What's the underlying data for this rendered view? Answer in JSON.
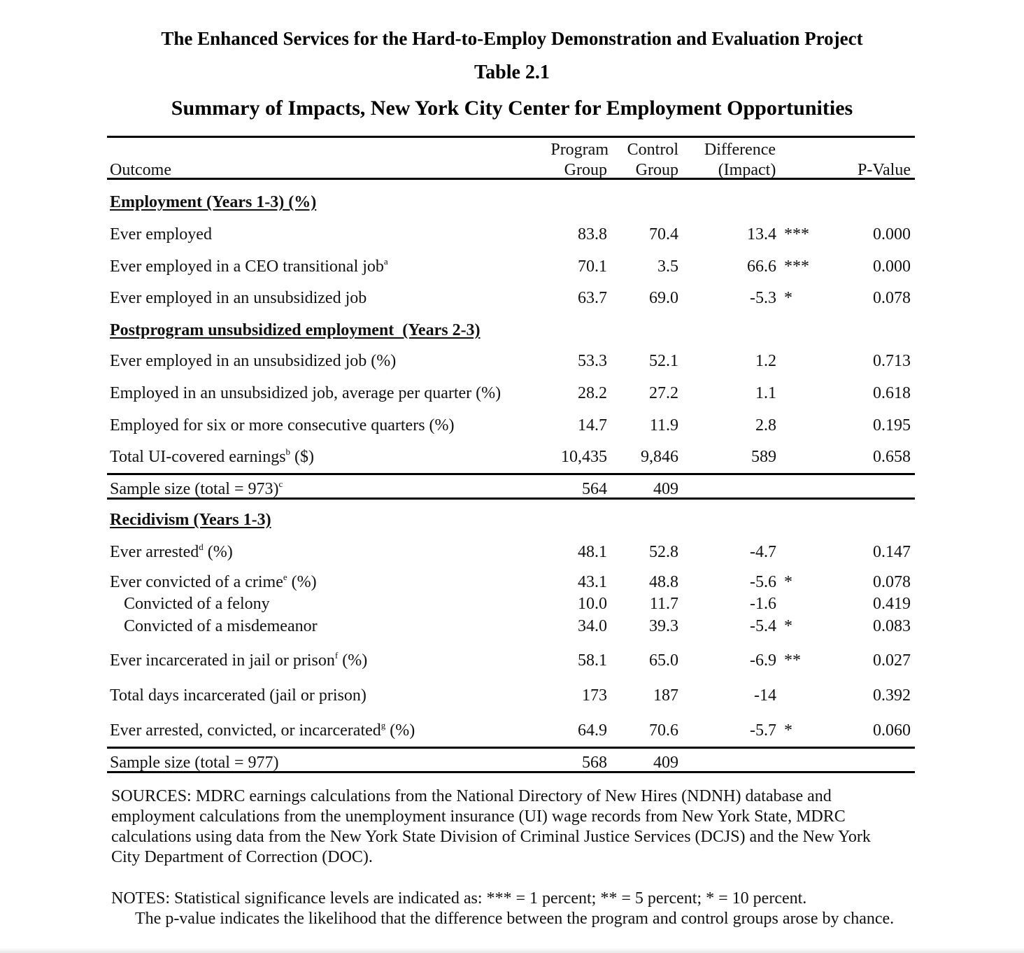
{
  "header": {
    "project": "The Enhanced Services for the Hard-to-Employ Demonstration and Evaluation Project",
    "table_number": "Table 2.1",
    "table_title": "Summary of Impacts, New York City Center for Employment Opportunities"
  },
  "columns": {
    "outcome": "Outcome",
    "program": [
      "Program",
      "Group"
    ],
    "control": [
      "Control",
      "Group"
    ],
    "difference": [
      "Difference",
      "(Impact)"
    ],
    "pvalue": "P-Value"
  },
  "sections": {
    "employment": "Employment (Years 1-3) (%)",
    "postprogram": "Postprogram unsubsidized employment  (Years 2-3)",
    "recidivism": "Recidivism (Years 1-3)"
  },
  "rows": [
    {
      "label": "Ever employed",
      "sup": "",
      "suffix": "",
      "program": "83.8",
      "control": "70.4",
      "diff": "13.4",
      "stars": "***",
      "p": "0.000"
    },
    {
      "label": "Ever employed in a CEO transitional job",
      "sup": "a",
      "suffix": "",
      "program": "70.1",
      "control": "3.5",
      "diff": "66.6",
      "stars": "***",
      "p": "0.000"
    },
    {
      "label": "Ever employed in an unsubsidized job",
      "sup": "",
      "suffix": "",
      "program": "63.7",
      "control": "69.0",
      "diff": "-5.3",
      "stars": "*",
      "p": "0.078"
    },
    {
      "label": "Ever employed in an unsubsidized job (%)",
      "sup": "",
      "suffix": "",
      "program": "53.3",
      "control": "52.1",
      "diff": "1.2",
      "stars": "",
      "p": "0.713"
    },
    {
      "label": "Employed in an unsubsidized job, average per quarter (%)",
      "sup": "",
      "suffix": "",
      "program": "28.2",
      "control": "27.2",
      "diff": "1.1",
      "stars": "",
      "p": "0.618"
    },
    {
      "label": "Employed for six or more consecutive quarters (%)",
      "sup": "",
      "suffix": "",
      "program": "14.7",
      "control": "11.9",
      "diff": "2.8",
      "stars": "",
      "p": "0.195"
    },
    {
      "label": "Total UI-covered earnings",
      "sup": "b",
      "suffix": " ($)",
      "program": "10,435",
      "control": "9,846",
      "diff": "589",
      "stars": "",
      "p": "0.658"
    },
    {
      "label": "Sample size (total = 973)",
      "sup": "c",
      "suffix": "",
      "program": "564",
      "control": "409",
      "diff": "",
      "stars": "",
      "p": ""
    },
    {
      "label": "Ever arrested",
      "sup": "d",
      "suffix": " (%)",
      "program": "48.1",
      "control": "52.8",
      "diff": "-4.7",
      "stars": "",
      "p": "0.147"
    },
    {
      "label": "Ever convicted of a crime",
      "sup": "e",
      "suffix": " (%)",
      "program": "43.1",
      "control": "48.8",
      "diff": "-5.6",
      "stars": "*",
      "p": "0.078"
    },
    {
      "label": "Convicted of a felony",
      "sup": "",
      "suffix": "",
      "program": "10.0",
      "control": "11.7",
      "diff": "-1.6",
      "stars": "",
      "p": "0.419"
    },
    {
      "label": "Convicted of a misdemeanor",
      "sup": "",
      "suffix": "",
      "program": "34.0",
      "control": "39.3",
      "diff": "-5.4",
      "stars": "*",
      "p": "0.083"
    },
    {
      "label": "Ever incarcerated in jail or prison",
      "sup": "f",
      "suffix": " (%)",
      "program": "58.1",
      "control": "65.0",
      "diff": "-6.9",
      "stars": "**",
      "p": "0.027"
    },
    {
      "label": "Total days incarcerated (jail or prison)",
      "sup": "",
      "suffix": "",
      "program": "173",
      "control": "187",
      "diff": "-14",
      "stars": "",
      "p": "0.392"
    },
    {
      "label": "Ever arrested, convicted, or incarcerated",
      "sup": "g",
      "suffix": " (%)",
      "program": "64.9",
      "control": "70.6",
      "diff": "-5.7",
      "stars": "*",
      "p": "0.060"
    },
    {
      "label": "Sample size (total = 977)",
      "sup": "",
      "suffix": "",
      "program": "568",
      "control": "409",
      "diff": "",
      "stars": "",
      "p": ""
    }
  ],
  "notes": {
    "sources": "SOURCES: MDRC earnings calculations from the National Directory of New Hires (NDNH) database and employment calculations from the unemployment insurance (UI) wage records from New York State, MDRC calculations using data from the New York State Division of Criminal Justice Services (DCJS) and the New York City Department of Correction (DOC).",
    "significance": "NOTES: Statistical significance levels are indicated as: *** = 1 percent; ** = 5 percent; * = 10 percent.",
    "pvalue": "The p-value indicates the likelihood that the difference between the program and control groups arose by chance."
  }
}
